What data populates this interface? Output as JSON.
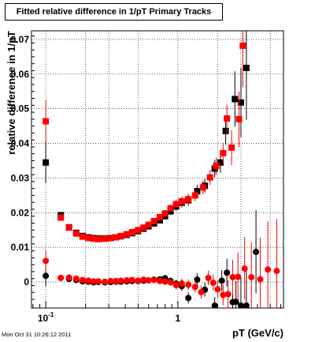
{
  "chart_data": {
    "type": "scatter",
    "title": "Fitted relative difference in 1/pT  Primary Tracks",
    "xlabel": "pT (GeV/c)",
    "ylabel": "relative difference in 1/pT",
    "xscale": "log",
    "xlim": [
      0.078,
      6.3
    ],
    "ylim": [
      -0.0075,
      0.0725
    ],
    "xticks": [
      {
        "value": 0.1,
        "label": "10",
        "exp": "-1"
      },
      {
        "value": 1,
        "label": "1",
        "exp": ""
      }
    ],
    "yticks": [
      0,
      0.01,
      0.02,
      0.03,
      0.04,
      0.05,
      0.06,
      0.07
    ],
    "ytick_labels": [
      "0",
      "0.01",
      "0.02",
      "0.03",
      "0.04",
      "0.05",
      "0.06",
      "0.07"
    ],
    "grid": true,
    "series": [
      {
        "marker": "square",
        "color": "#000000",
        "points": [
          [
            0.1,
            0.0345,
            0.006
          ],
          [
            0.13,
            0.0193,
            0.0008
          ],
          [
            0.15,
            0.0158,
            0.0005
          ],
          [
            0.17,
            0.0142,
            0.0004
          ],
          [
            0.19,
            0.0133,
            0.0004
          ],
          [
            0.21,
            0.0129,
            0.0004
          ],
          [
            0.23,
            0.0127,
            0.0004
          ],
          [
            0.25,
            0.0126,
            0.0004
          ],
          [
            0.28,
            0.0126,
            0.0004
          ],
          [
            0.31,
            0.0127,
            0.0004
          ],
          [
            0.34,
            0.0129,
            0.0004
          ],
          [
            0.37,
            0.0132,
            0.0004
          ],
          [
            0.41,
            0.0136,
            0.0005
          ],
          [
            0.45,
            0.0141,
            0.0005
          ],
          [
            0.5,
            0.0147,
            0.0005
          ],
          [
            0.55,
            0.0154,
            0.0006
          ],
          [
            0.6,
            0.0161,
            0.0006
          ],
          [
            0.66,
            0.0169,
            0.0007
          ],
          [
            0.73,
            0.0178,
            0.0008
          ],
          [
            0.8,
            0.019,
            0.0009
          ],
          [
            0.88,
            0.0204,
            0.001
          ],
          [
            0.97,
            0.0218,
            0.0012
          ],
          [
            1.07,
            0.0229,
            0.0014
          ],
          [
            1.2,
            0.0236,
            0.0016
          ],
          [
            1.4,
            0.0262,
            0.0018
          ],
          [
            1.6,
            0.0278,
            0.002
          ],
          [
            1.9,
            0.0327,
            0.0025
          ],
          [
            2.1,
            0.0345,
            0.003
          ],
          [
            2.3,
            0.0436,
            0.004
          ],
          [
            2.7,
            0.0528,
            0.008
          ],
          [
            3.0,
            0.0518,
            0.01
          ],
          [
            3.3,
            0.0618,
            0.015
          ]
        ]
      },
      {
        "marker": "square",
        "color": "#ff0000",
        "points": [
          [
            0.1,
            0.0464,
            0.006
          ],
          [
            0.13,
            0.0186,
            0.0008
          ],
          [
            0.15,
            0.0157,
            0.0005
          ],
          [
            0.17,
            0.014,
            0.0004
          ],
          [
            0.19,
            0.0131,
            0.0004
          ],
          [
            0.21,
            0.0127,
            0.0004
          ],
          [
            0.23,
            0.0125,
            0.0004
          ],
          [
            0.25,
            0.0124,
            0.0004
          ],
          [
            0.28,
            0.0125,
            0.0004
          ],
          [
            0.31,
            0.0127,
            0.0004
          ],
          [
            0.34,
            0.0129,
            0.0004
          ],
          [
            0.37,
            0.0133,
            0.0004
          ],
          [
            0.41,
            0.0138,
            0.0005
          ],
          [
            0.45,
            0.0144,
            0.0005
          ],
          [
            0.5,
            0.015,
            0.0005
          ],
          [
            0.55,
            0.0157,
            0.0006
          ],
          [
            0.6,
            0.0165,
            0.0006
          ],
          [
            0.66,
            0.0176,
            0.0007
          ],
          [
            0.73,
            0.0187,
            0.0008
          ],
          [
            0.8,
            0.0198,
            0.0009
          ],
          [
            0.88,
            0.0213,
            0.001
          ],
          [
            0.97,
            0.0225,
            0.0012
          ],
          [
            1.07,
            0.0233,
            0.0014
          ],
          [
            1.2,
            0.0239,
            0.0016
          ],
          [
            1.35,
            0.025,
            0.0017
          ],
          [
            1.55,
            0.0273,
            0.002
          ],
          [
            1.75,
            0.0302,
            0.0022
          ],
          [
            1.95,
            0.0335,
            0.0025
          ],
          [
            2.2,
            0.0372,
            0.003
          ],
          [
            2.35,
            0.0472,
            0.004
          ],
          [
            2.55,
            0.0388,
            0.005
          ],
          [
            2.9,
            0.047,
            0.008
          ],
          [
            3.1,
            0.0682,
            0.012
          ]
        ]
      },
      {
        "marker": "circle",
        "color": "#000000",
        "points": [
          [
            0.1,
            0.0018,
            0.003
          ],
          [
            0.13,
            0.0012,
            0.0006
          ],
          [
            0.15,
            0.0009,
            0.0005
          ],
          [
            0.17,
            0.0006,
            0.0004
          ],
          [
            0.19,
            0.0002,
            0.0004
          ],
          [
            0.21,
            0.0001,
            0.0004
          ],
          [
            0.23,
            -0.0001,
            0.0004
          ],
          [
            0.25,
            0.0,
            0.0004
          ],
          [
            0.28,
            -0.0001,
            0.0004
          ],
          [
            0.31,
            0.0,
            0.0004
          ],
          [
            0.34,
            0.0001,
            0.0004
          ],
          [
            0.37,
            0.0001,
            0.0004
          ],
          [
            0.41,
            0.0002,
            0.0005
          ],
          [
            0.45,
            0.0003,
            0.0005
          ],
          [
            0.5,
            0.0003,
            0.0005
          ],
          [
            0.55,
            0.0004,
            0.0006
          ],
          [
            0.6,
            0.0005,
            0.0006
          ],
          [
            0.66,
            0.0007,
            0.0007
          ],
          [
            0.73,
            0.0008,
            0.0008
          ],
          [
            0.8,
            0.0011,
            0.0009
          ],
          [
            0.88,
            0.0003,
            0.001
          ],
          [
            0.97,
            -0.0005,
            0.0012
          ],
          [
            1.07,
            -0.0012,
            0.0014
          ],
          [
            1.2,
            -0.0046,
            0.0016
          ],
          [
            1.4,
            0.0007,
            0.0018
          ],
          [
            1.6,
            -0.0022,
            0.002
          ],
          [
            1.9,
            -0.0068,
            0.0025
          ],
          [
            2.15,
            0.0004,
            0.003
          ],
          [
            2.35,
            0.0027,
            0.004
          ],
          [
            2.6,
            -0.0058,
            0.005
          ],
          [
            2.75,
            -0.0057,
            0.006
          ],
          [
            3.0,
            -0.0068,
            0.008
          ],
          [
            3.3,
            -0.0068,
            0.01
          ],
          [
            3.9,
            0.0087,
            0.012
          ]
        ]
      },
      {
        "marker": "circle",
        "color": "#ff0000",
        "points": [
          [
            0.1,
            0.0061,
            0.003
          ],
          [
            0.13,
            0.0012,
            0.0006
          ],
          [
            0.15,
            0.0013,
            0.0005
          ],
          [
            0.17,
            0.001,
            0.0004
          ],
          [
            0.19,
            0.0006,
            0.0004
          ],
          [
            0.21,
            0.0004,
            0.0004
          ],
          [
            0.23,
            0.0002,
            0.0004
          ],
          [
            0.25,
            0.0002,
            0.0004
          ],
          [
            0.28,
            0.0001,
            0.0004
          ],
          [
            0.31,
            0.0003,
            0.0004
          ],
          [
            0.34,
            0.0003,
            0.0004
          ],
          [
            0.37,
            0.0004,
            0.0004
          ],
          [
            0.41,
            0.0005,
            0.0005
          ],
          [
            0.45,
            0.0006,
            0.0005
          ],
          [
            0.5,
            0.0004,
            0.0005
          ],
          [
            0.55,
            0.0007,
            0.0006
          ],
          [
            0.6,
            0.0005,
            0.0006
          ],
          [
            0.66,
            0.0006,
            0.0007
          ],
          [
            0.73,
            0.0003,
            0.0008
          ],
          [
            0.8,
            0.0001,
            0.0009
          ],
          [
            0.88,
            -0.0001,
            0.001
          ],
          [
            0.97,
            -0.0009,
            0.0012
          ],
          [
            1.07,
            -0.0004,
            0.0014
          ],
          [
            1.2,
            -0.0008,
            0.0016
          ],
          [
            1.35,
            -0.0014,
            0.0017
          ],
          [
            1.5,
            -0.0029,
            0.0019
          ],
          [
            1.7,
            0.0012,
            0.0021
          ],
          [
            1.85,
            -0.0002,
            0.0023
          ],
          [
            2.0,
            -0.0021,
            0.0025
          ],
          [
            2.2,
            -0.0037,
            0.003
          ],
          [
            2.4,
            -0.0035,
            0.004
          ],
          [
            2.6,
            0.0014,
            0.005
          ],
          [
            2.85,
            0.0015,
            0.007
          ],
          [
            3.2,
            0.0039,
            0.009
          ],
          [
            3.6,
            0.0014,
            0.01
          ],
          [
            4.2,
            0.0008,
            0.012
          ],
          [
            4.8,
            0.0036,
            0.014
          ],
          [
            5.6,
            0.0032,
            0.015
          ]
        ]
      }
    ]
  },
  "footer": {
    "timestamp": "Mon Oct 31 10:26:12 2011"
  }
}
